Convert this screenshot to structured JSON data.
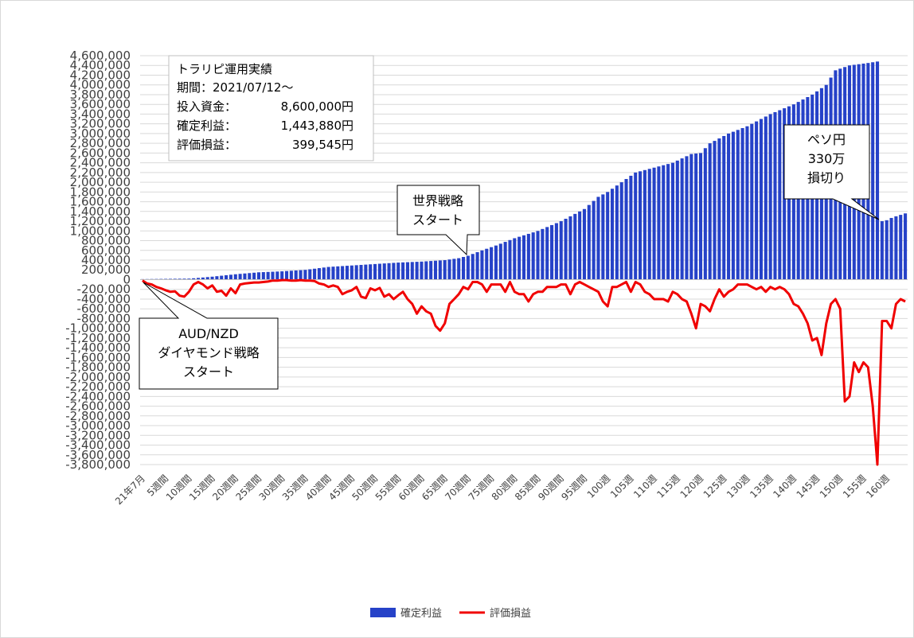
{
  "colors": {
    "bar": "#2642C8",
    "line": "#F00000",
    "grid": "#D9D9D9",
    "axis": "#BFBFBF",
    "text": "#404040"
  },
  "info_box": {
    "title": "トラリピ運用実績",
    "period": "期間：2021/07/12～",
    "investment_label": "投入資金：",
    "investment_value": "8,600,000円",
    "realized_label": "確定利益：",
    "realized_value": "1,443,880円",
    "unrealized_label": "評価損益：",
    "unrealized_value": "399,545円"
  },
  "callouts": {
    "world_strategy": [
      "世界戦略",
      "スタート"
    ],
    "aud_nzd": [
      "AUD/NZD",
      "ダイヤモンド戦略",
      "スタート"
    ],
    "peso": [
      "ペソ円",
      "330万",
      "損切り"
    ]
  },
  "chart_data": {
    "type": "bar",
    "title": "",
    "xlabel": "",
    "ylabel": "",
    "ylim": [
      -3800000,
      4600000
    ],
    "y_tick_step": 200000,
    "grid": true,
    "legend_position": "bottom",
    "x_tick_labels": [
      "21年7月",
      "5週間",
      "10週間",
      "15週間",
      "20週間",
      "25週間",
      "30週間",
      "35週間",
      "40週間",
      "45週間",
      "50週間",
      "55週間",
      "60週間",
      "65週間",
      "70週間",
      "75週間",
      "80週間",
      "85週間",
      "90週間",
      "95週間",
      "100週",
      "105週",
      "110週",
      "115週",
      "120週",
      "125週",
      "130週",
      "135週",
      "140週",
      "145週",
      "150週",
      "155週",
      "160週"
    ],
    "x_tick_positions": [
      0,
      5,
      10,
      15,
      20,
      25,
      30,
      35,
      40,
      45,
      50,
      55,
      60,
      65,
      70,
      75,
      80,
      85,
      90,
      95,
      100,
      105,
      110,
      115,
      120,
      125,
      130,
      135,
      140,
      145,
      150,
      155,
      160
    ],
    "week_count": 165,
    "series": [
      {
        "name": "確定利益",
        "type": "bar",
        "anchors": [
          [
            0,
            10000
          ],
          [
            5,
            15000
          ],
          [
            10,
            20000
          ],
          [
            12,
            35000
          ],
          [
            15,
            60000
          ],
          [
            20,
            110000
          ],
          [
            25,
            150000
          ],
          [
            30,
            170000
          ],
          [
            35,
            200000
          ],
          [
            40,
            260000
          ],
          [
            45,
            290000
          ],
          [
            50,
            320000
          ],
          [
            55,
            350000
          ],
          [
            60,
            370000
          ],
          [
            65,
            400000
          ],
          [
            68,
            440000
          ],
          [
            70,
            490000
          ],
          [
            73,
            600000
          ],
          [
            76,
            700000
          ],
          [
            80,
            850000
          ],
          [
            85,
            1000000
          ],
          [
            90,
            1200000
          ],
          [
            95,
            1450000
          ],
          [
            98,
            1700000
          ],
          [
            100,
            1800000
          ],
          [
            103,
            2000000
          ],
          [
            106,
            2200000
          ],
          [
            110,
            2300000
          ],
          [
            114,
            2400000
          ],
          [
            118,
            2580000
          ],
          [
            120,
            2600000
          ],
          [
            122,
            2800000
          ],
          [
            126,
            3000000
          ],
          [
            130,
            3150000
          ],
          [
            135,
            3400000
          ],
          [
            140,
            3600000
          ],
          [
            144,
            3800000
          ],
          [
            147,
            4000000
          ],
          [
            149,
            4300000
          ],
          [
            152,
            4400000
          ],
          [
            156,
            4450000
          ],
          [
            158,
            4480000
          ],
          [
            159,
            1200000
          ],
          [
            162,
            1300000
          ],
          [
            164,
            1360000
          ]
        ]
      },
      {
        "name": "評価損益",
        "type": "line",
        "values": [
          -20000,
          -80000,
          -100000,
          -150000,
          -180000,
          -220000,
          -250000,
          -240000,
          -330000,
          -350000,
          -250000,
          -100000,
          -50000,
          -100000,
          -180000,
          -120000,
          -250000,
          -230000,
          -330000,
          -180000,
          -280000,
          -100000,
          -80000,
          -70000,
          -60000,
          -60000,
          -50000,
          -40000,
          -20000,
          -20000,
          -10000,
          -10000,
          -20000,
          -20000,
          -10000,
          -20000,
          -20000,
          -30000,
          -80000,
          -100000,
          -150000,
          -120000,
          -150000,
          -300000,
          -250000,
          -220000,
          -150000,
          -350000,
          -380000,
          -180000,
          -220000,
          -170000,
          -350000,
          -300000,
          -400000,
          -320000,
          -250000,
          -400000,
          -500000,
          -700000,
          -550000,
          -650000,
          -700000,
          -950000,
          -1050000,
          -900000,
          -500000,
          -400000,
          -300000,
          -150000,
          -200000,
          -50000,
          -50000,
          -100000,
          -250000,
          -100000,
          -100000,
          -100000,
          -250000,
          -50000,
          -250000,
          -300000,
          -300000,
          -450000,
          -300000,
          -250000,
          -250000,
          -150000,
          -150000,
          -150000,
          -100000,
          -100000,
          -300000,
          -100000,
          -50000,
          -100000,
          -150000,
          -200000,
          -250000,
          -450000,
          -550000,
          -150000,
          -150000,
          -100000,
          -50000,
          -250000,
          -50000,
          -100000,
          -250000,
          -300000,
          -400000,
          -400000,
          -400000,
          -450000,
          -250000,
          -300000,
          -400000,
          -450000,
          -700000,
          -1000000,
          -500000,
          -550000,
          -650000,
          -400000,
          -200000,
          -350000,
          -250000,
          -200000,
          -100000,
          -100000,
          -100000,
          -150000,
          -200000,
          -150000,
          -250000,
          -150000,
          -200000,
          -150000,
          -200000,
          -300000,
          -500000,
          -550000,
          -700000,
          -900000,
          -1250000,
          -1200000,
          -1550000,
          -900000,
          -500000,
          -400000,
          -600000,
          -2500000,
          -2400000,
          -1700000,
          -1900000,
          -1700000,
          -1800000,
          -2600000,
          -3800000,
          -850000,
          -850000,
          -1000000,
          -500000,
          -400000,
          -450000
        ]
      }
    ]
  }
}
